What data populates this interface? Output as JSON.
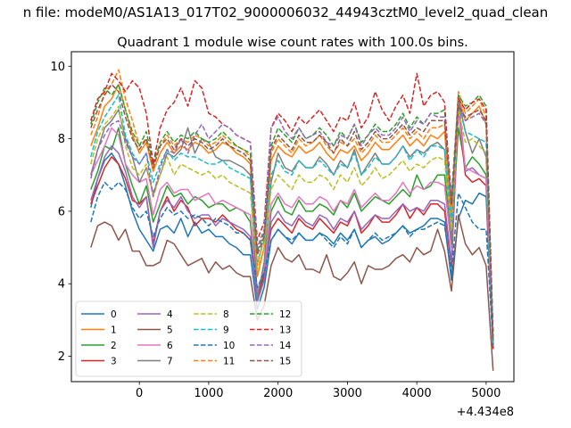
{
  "suptitle": "n file: modeM0/AS1A13_017T02_9000006032_44943cztM0_level2_quad_clean",
  "chart_data": {
    "type": "line",
    "title": "Quadrant 1 module wise count rates with 100.0s bins.",
    "xlabel": "",
    "ylabel": "",
    "x_offset_label": "+4.434e8",
    "xlim": [
      -980,
      5400
    ],
    "ylim": [
      1.3,
      10.4
    ],
    "xticks": [
      0,
      1000,
      2000,
      3000,
      4000,
      5000
    ],
    "yticks": [
      2,
      4,
      6,
      8,
      10
    ],
    "grid": false,
    "legend": {
      "placement": "lower-left",
      "columns": 4
    },
    "x": [
      -700,
      -600,
      -500,
      -400,
      -300,
      -200,
      -100,
      0,
      100,
      200,
      300,
      400,
      500,
      600,
      700,
      800,
      900,
      1000,
      1100,
      1200,
      1300,
      1400,
      1500,
      1600,
      1700,
      1800,
      1900,
      2000,
      2100,
      2200,
      2300,
      2400,
      2500,
      2600,
      2700,
      2800,
      2900,
      3000,
      3100,
      3200,
      3300,
      3400,
      3500,
      3600,
      3700,
      3800,
      3900,
      4000,
      4100,
      4200,
      4300,
      4400,
      4500,
      4600,
      4700,
      4800,
      4900,
      5000,
      5100
    ],
    "series": [
      {
        "name": "0",
        "color": "#1f77b4",
        "style": "solid",
        "values": [
          6.1,
          6.9,
          7.4,
          7.6,
          7.3,
          6.7,
          6.0,
          5.5,
          5.2,
          4.9,
          5.5,
          5.6,
          5.4,
          5.8,
          5.3,
          5.7,
          5.4,
          5.5,
          5.3,
          5.3,
          5.1,
          5.0,
          4.8,
          4.8,
          3.3,
          3.9,
          5.2,
          5.5,
          5.3,
          5.1,
          5.4,
          5.2,
          5.2,
          5.4,
          5.3,
          5.1,
          5.4,
          5.2,
          5.5,
          5.0,
          5.2,
          5.3,
          5.1,
          5.2,
          5.4,
          5.6,
          5.4,
          5.5,
          5.6,
          5.8,
          5.8,
          5.7,
          4.1,
          5.8,
          6.3,
          6.2,
          6.5,
          6.4,
          2.2
        ]
      },
      {
        "name": "1",
        "color": "#ff7f0e",
        "style": "solid",
        "values": [
          7.8,
          8.3,
          8.9,
          9.1,
          9.5,
          8.8,
          8.1,
          7.6,
          7.9,
          7.1,
          7.6,
          7.9,
          7.6,
          7.8,
          7.7,
          7.9,
          7.8,
          7.6,
          7.7,
          7.9,
          7.8,
          7.6,
          7.5,
          7.3,
          4.2,
          5.0,
          7.4,
          7.8,
          7.6,
          7.5,
          7.8,
          7.6,
          7.7,
          7.9,
          7.6,
          7.4,
          7.7,
          7.6,
          7.8,
          7.4,
          7.6,
          7.9,
          7.7,
          7.7,
          7.9,
          8.1,
          7.8,
          8.0,
          7.8,
          8.1,
          8.0,
          8.2,
          5.8,
          9.2,
          8.5,
          8.7,
          8.9,
          8.4,
          2.4
        ]
      },
      {
        "name": "2",
        "color": "#2ca02c",
        "style": "solid",
        "values": [
          6.6,
          7.1,
          7.8,
          7.7,
          8.3,
          7.3,
          6.7,
          6.2,
          6.7,
          5.7,
          6.2,
          6.7,
          6.4,
          6.5,
          6.2,
          6.4,
          6.3,
          6.1,
          6.2,
          6.2,
          6.0,
          6.1,
          6.0,
          5.7,
          3.6,
          4.2,
          6.0,
          6.4,
          6.0,
          5.9,
          6.3,
          6.0,
          6.0,
          6.2,
          6.1,
          5.9,
          6.3,
          6.1,
          6.5,
          6.0,
          6.2,
          6.4,
          6.3,
          6.2,
          6.4,
          6.6,
          6.4,
          7.0,
          6.6,
          6.7,
          7.0,
          7.0,
          5.2,
          8.3,
          7.2,
          7.5,
          7.3,
          7.0,
          2.3
        ]
      },
      {
        "name": "3",
        "color": "#d62728",
        "style": "solid",
        "values": [
          6.2,
          6.7,
          7.2,
          7.5,
          7.3,
          6.9,
          6.3,
          6.2,
          6.4,
          5.1,
          6.0,
          6.4,
          6.0,
          6.3,
          6.1,
          5.6,
          5.8,
          5.8,
          5.7,
          5.9,
          5.7,
          5.5,
          5.4,
          5.2,
          3.6,
          4.3,
          5.5,
          5.8,
          5.6,
          5.4,
          5.8,
          5.6,
          5.5,
          5.8,
          5.6,
          5.4,
          5.7,
          5.6,
          6.0,
          5.4,
          5.6,
          5.9,
          5.7,
          5.7,
          5.9,
          6.2,
          5.8,
          6.1,
          5.9,
          6.2,
          6.2,
          6.0,
          4.5,
          8.8,
          7.0,
          6.8,
          6.9,
          6.7,
          2.2
        ]
      },
      {
        "name": "4",
        "color": "#9467bd",
        "style": "solid",
        "values": [
          6.3,
          6.9,
          7.5,
          7.8,
          7.6,
          7.1,
          6.4,
          6.1,
          6.4,
          5.0,
          6.0,
          6.3,
          6.1,
          6.4,
          6.0,
          5.8,
          5.9,
          5.9,
          5.6,
          5.8,
          5.7,
          5.6,
          5.5,
          5.3,
          3.5,
          4.1,
          5.7,
          6.0,
          5.7,
          5.6,
          5.9,
          5.7,
          5.6,
          5.9,
          5.8,
          5.5,
          5.8,
          5.7,
          6.0,
          5.5,
          5.7,
          5.9,
          5.8,
          5.8,
          6.0,
          6.2,
          6.0,
          6.1,
          6.0,
          6.3,
          6.3,
          6.2,
          4.6,
          9.2,
          7.1,
          7.2,
          7.0,
          6.9,
          2.3
        ]
      },
      {
        "name": "5",
        "color": "#8c564b",
        "style": "solid",
        "values": [
          5.0,
          5.6,
          5.7,
          5.6,
          5.2,
          5.5,
          4.9,
          4.9,
          4.5,
          4.5,
          4.6,
          5.2,
          5.1,
          4.8,
          4.5,
          4.6,
          4.7,
          4.3,
          4.6,
          4.4,
          4.5,
          4.3,
          4.2,
          4.2,
          3.0,
          3.4,
          4.5,
          5.0,
          4.7,
          4.6,
          4.8,
          4.4,
          4.4,
          4.3,
          4.8,
          4.2,
          4.1,
          4.3,
          4.6,
          4.0,
          4.5,
          4.4,
          4.4,
          4.5,
          4.7,
          4.8,
          4.6,
          5.0,
          4.8,
          4.9,
          5.5,
          4.9,
          3.8,
          5.9,
          5.1,
          4.8,
          5.0,
          4.5,
          1.6
        ]
      },
      {
        "name": "6",
        "color": "#e377c2",
        "style": "solid",
        "values": [
          7.0,
          7.4,
          7.8,
          8.3,
          8.1,
          7.3,
          7.0,
          6.8,
          6.9,
          5.9,
          6.6,
          6.8,
          6.5,
          6.6,
          6.6,
          6.3,
          6.4,
          6.5,
          6.2,
          6.3,
          6.2,
          6.1,
          6.0,
          5.9,
          3.8,
          4.4,
          6.2,
          6.5,
          6.2,
          6.1,
          6.4,
          6.2,
          6.2,
          6.4,
          6.3,
          6.0,
          6.3,
          6.2,
          6.6,
          6.1,
          6.3,
          6.5,
          6.3,
          6.3,
          6.5,
          6.8,
          6.5,
          6.7,
          6.6,
          6.8,
          6.8,
          6.7,
          5.0,
          8.8,
          7.2,
          7.1,
          7.0,
          6.9,
          2.3
        ]
      },
      {
        "name": "7",
        "color": "#7f7f7f",
        "style": "solid",
        "values": [
          7.0,
          7.7,
          8.3,
          8.5,
          8.8,
          8.0,
          7.5,
          6.8,
          7.2,
          6.5,
          7.0,
          7.6,
          7.5,
          7.7,
          8.3,
          7.6,
          8.0,
          7.9,
          7.5,
          7.4,
          7.4,
          7.3,
          7.2,
          7.0,
          3.6,
          4.6,
          6.8,
          7.6,
          7.2,
          7.1,
          7.4,
          7.2,
          7.2,
          7.5,
          7.3,
          7.0,
          7.4,
          7.2,
          7.7,
          7.0,
          7.3,
          7.6,
          7.3,
          7.3,
          7.5,
          7.8,
          7.5,
          7.7,
          7.6,
          7.8,
          7.9,
          7.7,
          5.1,
          9.1,
          8.2,
          7.6,
          8.0,
          7.5,
          2.3
        ]
      },
      {
        "name": "8",
        "color": "#bcbd22",
        "style": "dashed",
        "values": [
          7.3,
          8.0,
          8.4,
          8.6,
          8.9,
          7.8,
          7.2,
          7.0,
          7.3,
          6.4,
          7.0,
          7.5,
          7.0,
          7.3,
          7.2,
          7.1,
          7.0,
          7.1,
          6.9,
          7.0,
          6.8,
          6.7,
          6.6,
          6.5,
          4.4,
          5.0,
          6.6,
          7.0,
          6.8,
          6.6,
          7.0,
          6.8,
          6.8,
          7.0,
          6.9,
          6.6,
          7.0,
          6.8,
          7.2,
          6.7,
          6.9,
          7.2,
          6.9,
          7.0,
          7.2,
          7.4,
          7.1,
          7.3,
          7.2,
          7.4,
          7.5,
          7.4,
          5.5,
          8.8,
          7.9,
          8.0,
          7.8,
          7.6,
          2.4
        ]
      },
      {
        "name": "9",
        "color": "#17becf",
        "style": "dashed",
        "values": [
          7.5,
          8.2,
          8.6,
          8.9,
          9.2,
          8.1,
          7.6,
          7.3,
          7.6,
          6.8,
          7.3,
          7.7,
          7.4,
          7.6,
          7.5,
          7.5,
          7.4,
          7.3,
          7.3,
          7.4,
          7.2,
          7.1,
          7.0,
          6.9,
          4.6,
          5.2,
          7.0,
          7.4,
          7.1,
          7.0,
          7.4,
          7.2,
          7.2,
          7.4,
          7.2,
          7.0,
          7.3,
          7.2,
          7.6,
          7.0,
          7.2,
          7.5,
          7.3,
          7.3,
          7.5,
          7.8,
          7.4,
          7.7,
          7.5,
          7.8,
          7.8,
          7.7,
          5.7,
          9.0,
          8.2,
          8.1,
          8.0,
          7.9,
          2.4
        ]
      },
      {
        "name": "10",
        "color": "#1f77b4",
        "style": "dashed",
        "values": [
          5.7,
          6.4,
          6.8,
          6.6,
          6.8,
          6.6,
          6.1,
          5.8,
          6.0,
          5.3,
          5.8,
          6.1,
          5.9,
          6.0,
          5.8,
          5.9,
          5.8,
          5.6,
          5.8,
          5.7,
          5.6,
          5.4,
          5.4,
          5.2,
          3.9,
          4.3,
          5.2,
          5.5,
          5.3,
          5.2,
          5.4,
          5.2,
          5.2,
          5.4,
          5.2,
          5.0,
          5.3,
          5.1,
          5.5,
          5.0,
          5.2,
          5.4,
          5.2,
          5.3,
          5.4,
          5.6,
          5.3,
          5.5,
          5.5,
          5.6,
          5.7,
          5.6,
          4.3,
          6.5,
          6.1,
          5.7,
          5.5,
          5.5,
          2.3
        ]
      },
      {
        "name": "11",
        "color": "#ff7f0e",
        "style": "dashed",
        "values": [
          8.1,
          8.6,
          9.3,
          9.5,
          9.9,
          9.1,
          8.5,
          7.8,
          8.0,
          7.2,
          7.8,
          8.1,
          7.8,
          8.0,
          7.9,
          8.1,
          8.0,
          7.8,
          7.9,
          8.1,
          7.9,
          7.8,
          7.7,
          7.5,
          4.5,
          5.3,
          7.6,
          8.0,
          7.8,
          7.6,
          8.0,
          7.8,
          7.9,
          8.1,
          7.8,
          7.6,
          7.9,
          7.8,
          8.0,
          7.6,
          7.8,
          8.1,
          7.9,
          7.9,
          8.1,
          8.3,
          8.0,
          8.2,
          8.0,
          8.3,
          8.3,
          8.4,
          6.0,
          9.3,
          8.7,
          8.9,
          9.1,
          8.6,
          2.5
        ]
      },
      {
        "name": "12",
        "color": "#2ca02c",
        "style": "dashed",
        "values": [
          8.4,
          9.0,
          9.4,
          9.2,
          9.5,
          8.8,
          8.2,
          7.8,
          8.2,
          7.3,
          7.9,
          8.2,
          7.9,
          8.1,
          8.0,
          8.2,
          8.0,
          7.9,
          8.0,
          8.2,
          8.0,
          7.8,
          7.7,
          7.6,
          4.9,
          5.4,
          7.8,
          8.3,
          8.1,
          7.9,
          8.3,
          8.0,
          8.1,
          8.3,
          8.1,
          7.8,
          8.2,
          8.0,
          8.4,
          7.9,
          8.1,
          8.4,
          8.2,
          8.2,
          8.4,
          8.7,
          8.3,
          8.6,
          8.4,
          8.7,
          8.7,
          8.8,
          6.4,
          9.2,
          8.9,
          9.0,
          9.2,
          8.9,
          2.6
        ]
      },
      {
        "name": "13",
        "color": "#d62728",
        "style": "dashed",
        "values": [
          8.5,
          9.1,
          9.3,
          9.8,
          9.6,
          9.3,
          9.6,
          9.4,
          8.7,
          7.3,
          8.3,
          8.8,
          9.0,
          9.4,
          8.9,
          9.6,
          9.4,
          8.7,
          8.6,
          8.4,
          8.3,
          8.1,
          8.0,
          7.9,
          5.2,
          5.7,
          8.3,
          8.7,
          8.5,
          8.2,
          8.6,
          8.4,
          8.6,
          8.8,
          8.5,
          8.2,
          8.6,
          8.5,
          9.0,
          8.3,
          8.6,
          9.3,
          8.8,
          8.5,
          8.9,
          9.2,
          8.7,
          9.8,
          8.9,
          9.2,
          9.3,
          9.0,
          6.2,
          9.1,
          8.8,
          9.0,
          9.1,
          8.8,
          2.5
        ]
      },
      {
        "name": "14",
        "color": "#9467bd",
        "style": "dashed",
        "values": [
          6.9,
          7.7,
          8.1,
          8.4,
          8.5,
          7.9,
          7.5,
          7.3,
          7.6,
          6.4,
          7.2,
          7.7,
          7.6,
          8.0,
          7.6,
          8.1,
          8.4,
          8.0,
          8.2,
          8.4,
          8.3,
          8.1,
          8.0,
          7.9,
          5.0,
          5.5,
          8.3,
          8.6,
          8.2,
          8.0,
          8.3,
          8.0,
          8.1,
          8.2,
          7.9,
          7.8,
          8.1,
          8.0,
          8.4,
          7.8,
          8.1,
          8.3,
          8.1,
          8.1,
          8.3,
          8.6,
          8.2,
          8.5,
          8.4,
          8.7,
          8.6,
          8.6,
          6.3,
          9.0,
          8.5,
          8.6,
          8.7,
          8.4,
          2.5
        ]
      },
      {
        "name": "15",
        "color": "#8c564b",
        "style": "dashed",
        "values": [
          8.3,
          8.8,
          9.2,
          9.5,
          9.3,
          8.6,
          8.0,
          7.7,
          8.0,
          7.2,
          7.8,
          8.0,
          7.7,
          8.0,
          7.8,
          8.0,
          7.9,
          7.7,
          7.8,
          8.0,
          7.8,
          7.7,
          7.6,
          7.4,
          4.8,
          5.3,
          7.7,
          8.1,
          7.9,
          7.7,
          8.1,
          7.9,
          7.9,
          8.1,
          7.9,
          7.6,
          8.0,
          7.8,
          8.2,
          7.7,
          7.9,
          8.2,
          8.0,
          8.0,
          8.2,
          8.4,
          8.1,
          8.3,
          8.2,
          8.5,
          8.5,
          8.5,
          6.2,
          8.9,
          8.6,
          8.7,
          8.8,
          8.5,
          2.5
        ]
      }
    ]
  }
}
